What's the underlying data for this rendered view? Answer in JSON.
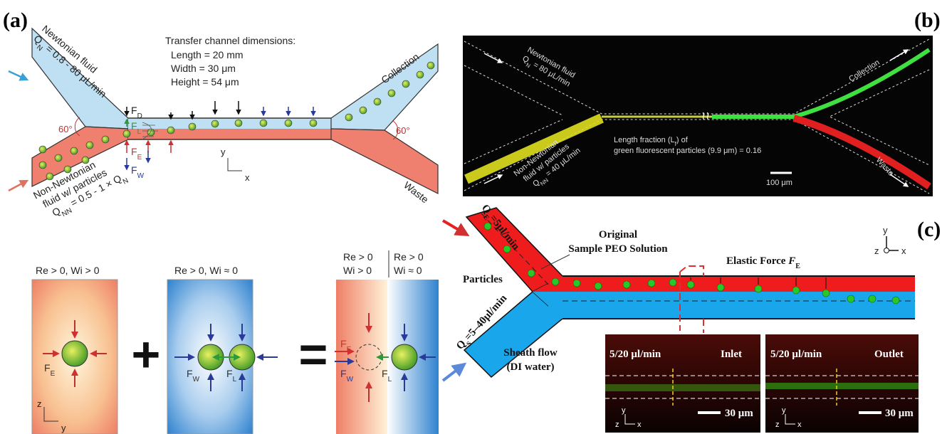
{
  "panel_a": {
    "label": "(a)",
    "newtonian": {
      "title": "Newtonian fluid",
      "q": {
        "symbol": "Q",
        "sub": "N",
        "rest": " = 0.8 - 80 μL/min"
      }
    },
    "dimensions": {
      "title": "Transfer channel dimensions:",
      "lines": [
        "Length = 20 mm",
        "Width = 30 μm",
        "Height = 54 μm"
      ]
    },
    "collection": "Collection",
    "waste": "Waste",
    "angles": [
      "60°",
      "60°"
    ],
    "forces": {
      "drag": {
        "symbol": "F",
        "sub": "D"
      },
      "lift": {
        "symbol": "F",
        "sub": "L"
      },
      "elastic": {
        "symbol": "F",
        "sub": "E"
      },
      "wall": {
        "symbol": "F",
        "sub": "W"
      }
    },
    "axes": [
      "y",
      "x"
    ],
    "non_newtonian": {
      "lines": [
        "Non-Newtonian",
        "fluid w/ particles"
      ],
      "q": {
        "symbol": "Q",
        "sub": "NN",
        "rest": " = 0.5 - 1 × Q",
        "sub2": "N"
      }
    },
    "regimes": {
      "viscoelastic": "Re > 0, Wi > 0",
      "newtonian": "Re > 0, Wi ≈ 0",
      "combined_left": [
        "Re > 0",
        "Wi > 0"
      ],
      "combined_right": [
        "Re > 0",
        "Wi ≈ 0"
      ]
    },
    "operators": [
      "+",
      "="
    ],
    "box_axes": [
      "z",
      "y"
    ]
  },
  "panel_b": {
    "label": "(b)",
    "newtonian": {
      "title": "Newtonian fluid",
      "q": {
        "symbol": "Q",
        "sub": "N",
        "rest": " = 80 μL/min"
      }
    },
    "collection": "Collection",
    "length_fraction": {
      "pre": "Length fraction (L",
      "sub": "f",
      "post": ") of",
      "line2": "green fluorescent particles (9.9 μm) = 0.16"
    },
    "non_newtonian": {
      "lines": [
        "Non-Newtonian",
        "fluid w/ particles"
      ],
      "q": {
        "symbol": "Q",
        "sub": "NN",
        "rest": " = 40 μL/min"
      }
    },
    "waste": "Waste",
    "scale": "100 μm"
  },
  "panel_c": {
    "label": "(c)",
    "q_sample": {
      "symbol": "Q",
      "sub": "E",
      "rest": "=5μl/min"
    },
    "original": [
      "Original",
      "Sample PEO Solution"
    ],
    "elastic_force": {
      "pre": "Elastic Force ",
      "symbol": "F",
      "sub": "E"
    },
    "particles": "Particles",
    "q_sheath": {
      "symbol": "Q",
      "sub": "S",
      "rest": "=5–40μl/min"
    },
    "sheath": [
      "Sheath flow",
      "(DI water)"
    ],
    "axes": [
      "y",
      "z",
      "x"
    ],
    "insets": [
      {
        "flow": "5/20 μl/min",
        "position": "Inlet",
        "scale": "30 μm",
        "axes": [
          "y",
          "z",
          "x"
        ]
      },
      {
        "flow": "5/20 μl/min",
        "position": "Outlet",
        "scale": "30 μm",
        "axes": [
          "y",
          "z",
          "x"
        ]
      }
    ]
  }
}
